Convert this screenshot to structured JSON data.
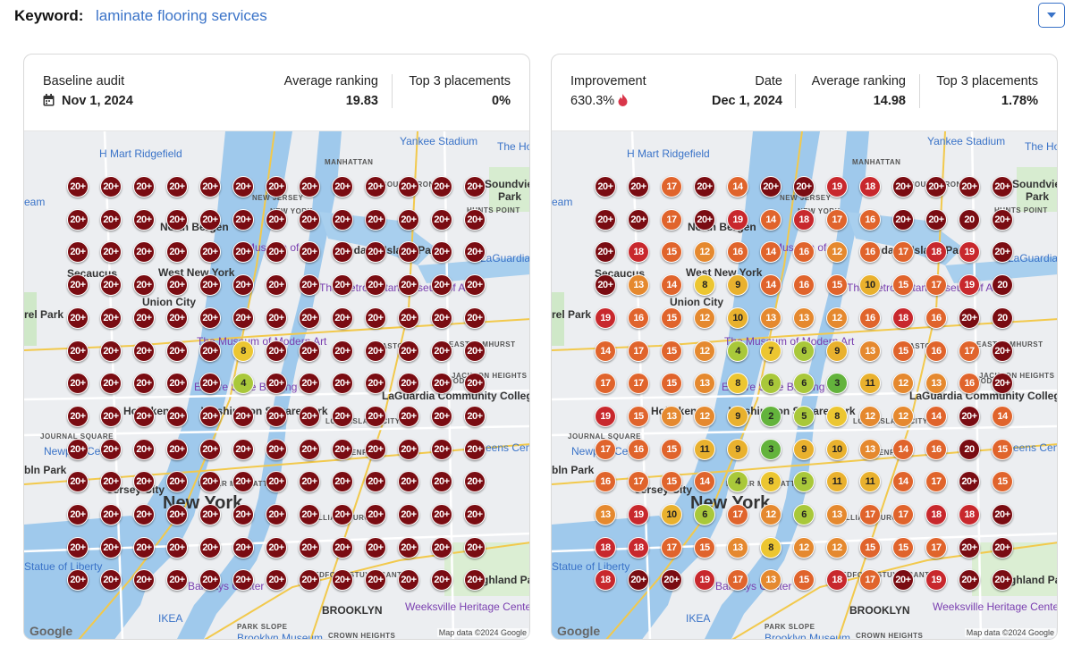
{
  "keyword": {
    "label": "Keyword:",
    "value": "laminate flooring services"
  },
  "dropdown": {
    "icon": "caret-down-icon"
  },
  "left": {
    "title": "Baseline audit",
    "date": "Nov 1, 2024",
    "avg_label": "Average ranking",
    "avg_value": "19.83",
    "top3_label": "Top 3 placements",
    "top3_value": "0%"
  },
  "right": {
    "improvement_label": "Improvement",
    "improvement_value": "630.3%",
    "date_label": "Date",
    "date_value": "Dec 1, 2024",
    "avg_label": "Average ranking",
    "avg_value": "14.98",
    "top3_label": "Top 3 placements",
    "top3_value": "1.78%"
  },
  "map": {
    "labels": {
      "h_mart": "H Mart Ridgefield",
      "manhattan": "MANHATTAN",
      "south_bronx": "SOUTH BRONX",
      "soundview": "Soundview",
      "park": "Park",
      "hunts_point": "HUNTS POINT",
      "north_bergen": "North Bergen",
      "museum_city": "Museum of the",
      "randalls": "Randall's Island Park",
      "secaucus": "Secaucus",
      "west_new_york": "West New York",
      "laguardia": "LaGuardia Airport",
      "union_city": "Union City",
      "metropolitan": "The Metropolitan Museum of Art",
      "moma": "The Museum of Modern Art",
      "astoria": "ASTORIA",
      "east_elmhurst": "EAST ELMHURST",
      "empire": "Empire State Building",
      "hoboken": "Hoboken",
      "washington": "Washington Square Park",
      "laguardia_cc": "LaGuardia Community College",
      "woodside": "WOODSIDE",
      "jackson": "JACKSON HEIGHTS",
      "journal": "JOURNAL SQUARE",
      "newport": "Newport Centre",
      "long_island": "LONG ISLAND CITY",
      "queens": "Queens Center",
      "greenpoint": "GREENPOINT",
      "jersey_city": "Jersey City",
      "new_york": "New York",
      "lower": "LOWER MANHATTAN",
      "williamsburg": "WILLIAMSBURG",
      "statue": "Statue of Liberty",
      "barclays": "Barclays Center",
      "bedford": "BEDFORD STUYVESANT",
      "highland": "Highland Park",
      "brooklyn": "BROOKLYN",
      "weeksville": "Weeksville Heritage Center",
      "ikea": "IKEA",
      "park_slope": "PARK SLOPE",
      "brooklyn_museum": "Brooklyn Museum",
      "crown": "CROWN HEIGHTS",
      "yankee": "Yankee Stadium",
      "the_ho": "The Ho",
      "eam": "eam",
      "rel_park": "rel Park",
      "bln_park": "bln Park",
      "new_jersey": "NEW JERSEY",
      "new_york_state": "NEW YORK",
      "google": "Google",
      "map_data": "Map data ©2024 Google"
    },
    "left_grid": [
      [
        "20+",
        "20+",
        "20+",
        "20+",
        "20+",
        "20+",
        "20+",
        "20+",
        "20+",
        "20+",
        "20+",
        "20+",
        "20+"
      ],
      [
        "20+",
        "20+",
        "20+",
        "20+",
        "20+",
        "20+",
        "20+",
        "20+",
        "20+",
        "20+",
        "20+",
        "20+",
        "20+"
      ],
      [
        "20+",
        "20+",
        "20+",
        "20+",
        "20+",
        "20+",
        "20+",
        "20+",
        "20+",
        "20+",
        "20+",
        "20+",
        "20+"
      ],
      [
        "20+",
        "20+",
        "20+",
        "20+",
        "20+",
        "20+",
        "20+",
        "20+",
        "20+",
        "20+",
        "20+",
        "20+",
        "20+"
      ],
      [
        "20+",
        "20+",
        "20+",
        "20+",
        "20+",
        "20+",
        "20+",
        "20+",
        "20+",
        "20+",
        "20+",
        "20+",
        "20+"
      ],
      [
        "20+",
        "20+",
        "20+",
        "20+",
        "20+",
        "8",
        "20+",
        "20+",
        "20+",
        "20+",
        "20+",
        "20+",
        "20+"
      ],
      [
        "20+",
        "20+",
        "20+",
        "20+",
        "20+",
        "4",
        "20+",
        "20+",
        "20+",
        "20+",
        "20+",
        "20+",
        "20+"
      ],
      [
        "20+",
        "20+",
        "20+",
        "20+",
        "20+",
        "20+",
        "20+",
        "20+",
        "20+",
        "20+",
        "20+",
        "20+",
        "20+"
      ],
      [
        "20+",
        "20+",
        "20+",
        "20+",
        "20+",
        "20+",
        "20+",
        "20+",
        "20+",
        "20+",
        "20+",
        "20+",
        "20+"
      ],
      [
        "20+",
        "20+",
        "20+",
        "20+",
        "20+",
        "20+",
        "20+",
        "20+",
        "20+",
        "20+",
        "20+",
        "20+",
        "20+"
      ],
      [
        "20+",
        "20+",
        "20+",
        "20+",
        "20+",
        "20+",
        "20+",
        "20+",
        "20+",
        "20+",
        "20+",
        "20+",
        "20+"
      ],
      [
        "20+",
        "20+",
        "20+",
        "20+",
        "20+",
        "20+",
        "20+",
        "20+",
        "20+",
        "20+",
        "20+",
        "20+",
        "20+"
      ],
      [
        "20+",
        "20+",
        "20+",
        "20+",
        "20+",
        "20+",
        "20+",
        "20+",
        "20+",
        "20+",
        "20+",
        "20+",
        "20+"
      ]
    ],
    "right_grid": [
      [
        "20+",
        "20+",
        "17",
        "20+",
        "14",
        "20+",
        "20+",
        "19",
        "18",
        "20+",
        "20+",
        "20+",
        "20+"
      ],
      [
        "20+",
        "20+",
        "17",
        "20+",
        "19",
        "14",
        "18",
        "17",
        "16",
        "20+",
        "20+",
        "20",
        "20+"
      ],
      [
        "20+",
        "18",
        "15",
        "12",
        "16",
        "14",
        "16",
        "12",
        "16",
        "17",
        "18",
        "19",
        "20+"
      ],
      [
        "20+",
        "13",
        "14",
        "8",
        "9",
        "14",
        "16",
        "15",
        "10",
        "15",
        "17",
        "19",
        "20"
      ],
      [
        "19",
        "16",
        "15",
        "12",
        "10",
        "13",
        "13",
        "12",
        "16",
        "18",
        "16",
        "20+",
        "20"
      ],
      [
        "14",
        "17",
        "15",
        "12",
        "4",
        "7",
        "6",
        "9",
        "13",
        "15",
        "16",
        "17",
        "20+"
      ],
      [
        "17",
        "17",
        "15",
        "13",
        "8",
        "6",
        "6",
        "3",
        "11",
        "12",
        "13",
        "16",
        "20+"
      ],
      [
        "19",
        "15",
        "13",
        "12",
        "9",
        "2",
        "5",
        "8",
        "12",
        "12",
        "14",
        "20+",
        "14"
      ],
      [
        "17",
        "16",
        "15",
        "11",
        "9",
        "3",
        "9",
        "10",
        "13",
        "14",
        "16",
        "20",
        "15"
      ],
      [
        "16",
        "17",
        "15",
        "14",
        "4",
        "8",
        "5",
        "11",
        "11",
        "14",
        "17",
        "20+",
        "15"
      ],
      [
        "13",
        "19",
        "10",
        "6",
        "17",
        "12",
        "6",
        "13",
        "17",
        "17",
        "18",
        "18",
        "20+"
      ],
      [
        "18",
        "18",
        "17",
        "15",
        "13",
        "8",
        "12",
        "12",
        "15",
        "15",
        "17",
        "20+",
        "20+"
      ],
      [
        "18",
        "20+",
        "20+",
        "19",
        "17",
        "13",
        "15",
        "18",
        "17",
        "20+",
        "19",
        "20+",
        "20+"
      ]
    ]
  }
}
